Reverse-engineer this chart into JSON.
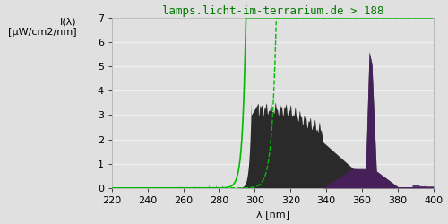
{
  "title": "lamps.licht-im-terrarium.de > 188",
  "xlabel": "λ [nm]",
  "ylabel": "I(λ)\n[μW/cm2/nm]",
  "xlim": [
    220,
    400
  ],
  "ylim": [
    0.0,
    7.0
  ],
  "xticks": [
    220,
    240,
    260,
    280,
    300,
    320,
    340,
    360,
    380,
    400
  ],
  "yticks": [
    0.0,
    1.0,
    2.0,
    3.0,
    4.0,
    5.0,
    6.0,
    7.0
  ],
  "background_color": "#e0e0e0",
  "plot_bg_color": "#e0e0e0",
  "grid_color": "#f0f0f0",
  "title_color": "#007700",
  "title_fontsize": 9,
  "axis_label_fontsize": 8,
  "tick_fontsize": 8,
  "green_line_color": "#00bb00",
  "spectrum_fill_color": "#2a2a2a",
  "purple_fill_color": "#4a2060"
}
